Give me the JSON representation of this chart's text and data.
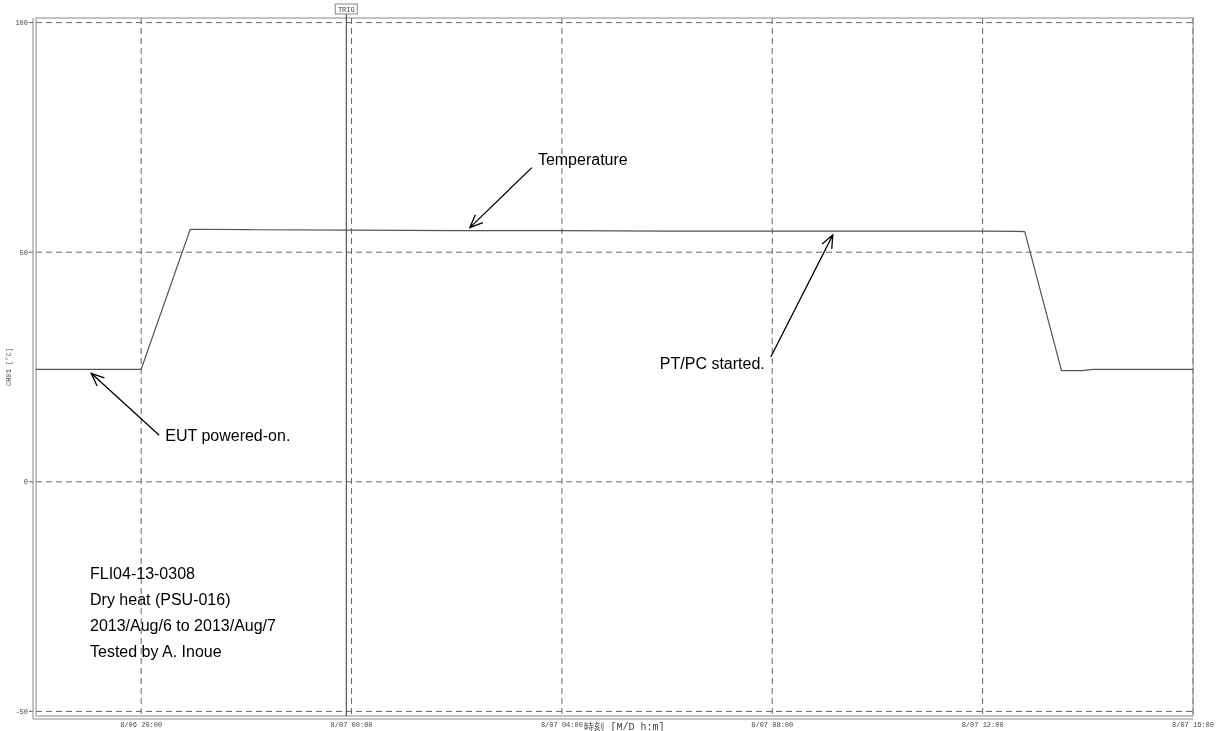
{
  "chart_data": {
    "type": "line",
    "xlabel": "時刻 [M/D h:m]",
    "ylabel": "CH01 [°C]",
    "x": [
      "2013-08-06T18:00",
      "2013-08-06T20:00",
      "2013-08-06T20:56",
      "2013-08-06T22:00",
      "2013-08-07T00:00",
      "2013-08-07T02:00",
      "2013-08-07T04:00",
      "2013-08-07T06:00",
      "2013-08-07T08:00",
      "2013-08-07T10:00",
      "2013-08-07T12:00",
      "2013-08-07T12:48",
      "2013-08-07T13:30",
      "2013-08-07T13:54",
      "2013-08-07T14:06",
      "2013-08-07T16:00"
    ],
    "series": [
      {
        "name": "Temperature",
        "color": "#555555",
        "values": [
          24.5,
          24.5,
          55,
          54.9,
          54.8,
          54.7,
          54.7,
          54.6,
          54.6,
          54.6,
          54.6,
          54.5,
          24.2,
          24.2,
          24.5,
          24.5
        ]
      }
    ],
    "xlim": [
      "2013-08-06T18:00",
      "2013-08-07T16:00"
    ],
    "ylim": [
      -51,
      101
    ],
    "xticks": [
      {
        "value": "2013-08-06T20:00",
        "label": "8/06 20:00"
      },
      {
        "value": "2013-08-07T00:00",
        "label": "8/07 00:00"
      },
      {
        "value": "2013-08-07T04:00",
        "label": "8/07 04:00"
      },
      {
        "value": "2013-08-07T08:00",
        "label": "8/07 08:00"
      },
      {
        "value": "2013-08-07T12:00",
        "label": "8/07 12:00"
      },
      {
        "value": "2013-08-07T16:00",
        "label": "8/07 16:00"
      }
    ],
    "yticks": [
      -50,
      0,
      50,
      100
    ],
    "grid": true,
    "line_style": "solid",
    "marker": "none",
    "ref_lines": [
      {
        "axis": "x",
        "value": "2013-08-06T23:54",
        "label": "TRIG",
        "color": "#333333"
      }
    ],
    "annotations": [
      {
        "text": "PT/PC started.",
        "x": "2013-08-07T09:09",
        "y": 54.6
      },
      {
        "text": "EUT powered-on.",
        "x": "2013-08-06T19:03",
        "y": 24.5
      },
      "FLI04-13-0308",
      "Dry heat (PSU-016)",
      "2013/Aug/6 to 2013/Aug/7",
      "Tested by A. Inoue"
    ]
  }
}
